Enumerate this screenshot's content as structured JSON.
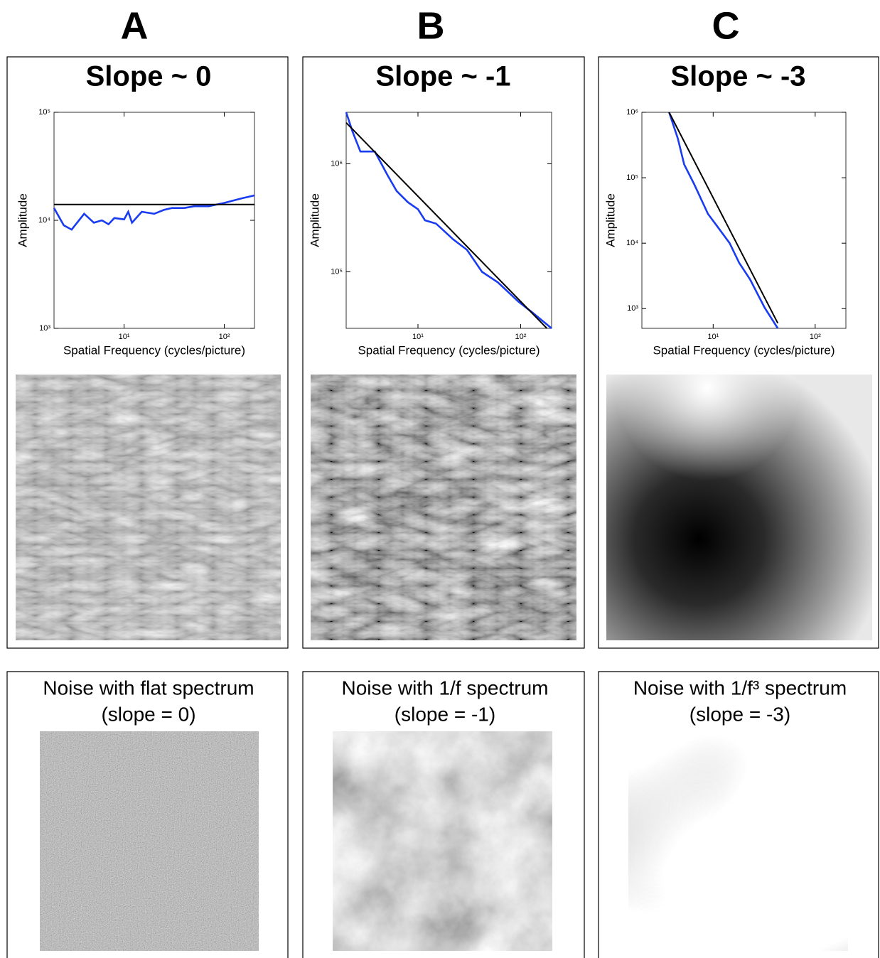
{
  "panels": [
    "A",
    "B",
    "C"
  ],
  "chart_data": [
    {
      "type": "line",
      "title": "Slope ~ 0",
      "xlabel": "Spatial Frequency (cycles/picture)",
      "ylabel": "Amplitude",
      "xscale": "log",
      "yscale": "log",
      "xlim": [
        2,
        200
      ],
      "ylim": [
        1000,
        100000
      ],
      "xticks": [
        {
          "value": 10,
          "label": "10¹"
        },
        {
          "value": 100,
          "label": "10²"
        }
      ],
      "yticks": [
        {
          "value": 1000,
          "label": "10³"
        },
        {
          "value": 10000,
          "label": "10⁴"
        },
        {
          "value": 100000,
          "label": "10⁵"
        }
      ],
      "series": [
        {
          "color": "#1a3cf0",
          "x": [
            2,
            2.5,
            3,
            4,
            5,
            6,
            7,
            8,
            10,
            11,
            12,
            15,
            20,
            25,
            30,
            40,
            50,
            70,
            100,
            150,
            200
          ],
          "values": [
            13000,
            9000,
            8200,
            11500,
            9500,
            10000,
            9200,
            10500,
            10200,
            12000,
            9500,
            12000,
            11500,
            12500,
            13000,
            13000,
            13500,
            13500,
            14500,
            16000,
            17000
          ]
        },
        {
          "color": "#000000",
          "x": [
            2,
            200
          ],
          "values": [
            14000,
            14000
          ]
        }
      ]
    },
    {
      "type": "line",
      "title": "Slope ~ -1",
      "xlabel": "Spatial Frequency (cycles/picture)",
      "ylabel": "Amplitude",
      "xscale": "log",
      "yscale": "log",
      "xlim": [
        2,
        200
      ],
      "ylim": [
        30000,
        3000000
      ],
      "xticks": [
        {
          "value": 10,
          "label": "10¹"
        },
        {
          "value": 100,
          "label": "10²"
        }
      ],
      "yticks": [
        {
          "value": 100000,
          "label": "10⁵"
        },
        {
          "value": 1000000,
          "label": "10⁶"
        }
      ],
      "series": [
        {
          "color": "#1a3cf0",
          "x": [
            2,
            2.3,
            2.75,
            3.8,
            5,
            6.2,
            8,
            10,
            11.7,
            15,
            22,
            30,
            42,
            60,
            95,
            130,
            200
          ],
          "values": [
            3000000,
            2000000,
            1300000,
            1300000,
            800000,
            560000,
            440000,
            380000,
            300000,
            280000,
            200000,
            160000,
            100000,
            80000,
            53000,
            42000,
            30000
          ]
        },
        {
          "color": "#000000",
          "x": [
            2,
            180
          ],
          "values": [
            2400000,
            30000
          ]
        }
      ]
    },
    {
      "type": "line",
      "title": "Slope ~ -3",
      "xlabel": "Spatial Frequency (cycles/picture)",
      "ylabel": "Amplitude",
      "xscale": "log",
      "yscale": "log",
      "xlim": [
        2,
        200
      ],
      "ylim": [
        500,
        1000000
      ],
      "xticks": [
        {
          "value": 10,
          "label": "10¹"
        },
        {
          "value": 100,
          "label": "10²"
        }
      ],
      "yticks": [
        {
          "value": 1000,
          "label": "10³"
        },
        {
          "value": 10000,
          "label": "10⁴"
        },
        {
          "value": 100000,
          "label": "10⁵"
        },
        {
          "value": 1000000,
          "label": "10⁶"
        }
      ],
      "series": [
        {
          "color": "#1a3cf0",
          "x": [
            3.7,
            4.5,
            5.2,
            6.5,
            8.9,
            11,
            14.5,
            18,
            23,
            32,
            43
          ],
          "values": [
            1000000,
            400000,
            160000,
            80000,
            28000,
            18000,
            10000,
            5000,
            2800,
            1030,
            500
          ]
        },
        {
          "color": "#000000",
          "x": [
            3.7,
            43
          ],
          "values": [
            1000000,
            600
          ]
        }
      ]
    }
  ],
  "noise": [
    {
      "title": "Noise with flat spectrum",
      "caption": "(slope = 0)"
    },
    {
      "title": "Noise with 1/f spectrum",
      "caption": "(slope = -1)"
    },
    {
      "title": "Noise with 1/f³ spectrum",
      "caption": "(slope = -3)"
    }
  ]
}
